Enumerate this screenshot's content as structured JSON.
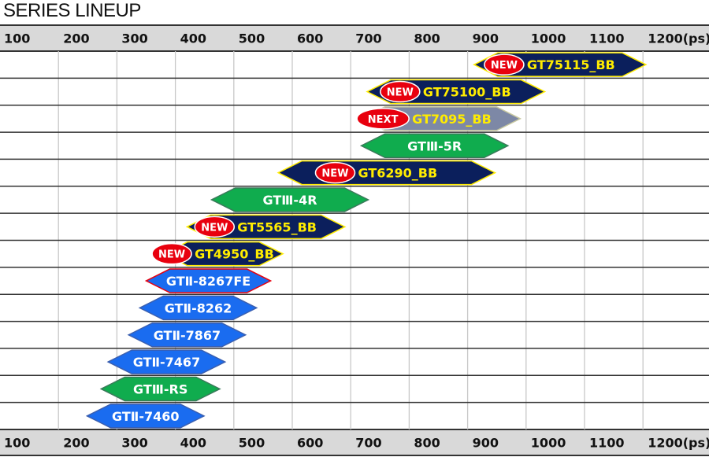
{
  "chart_data": {
    "type": "range-bar",
    "title": "SERIES LINEUP",
    "unit": "(ps)",
    "x_ticks": [
      100,
      200,
      300,
      400,
      500,
      600,
      700,
      800,
      900,
      1000,
      1100,
      1200
    ],
    "x_tick_labels": [
      "100",
      "200",
      "300",
      "400",
      "500",
      "600",
      "700",
      "800",
      "900",
      "1000",
      "1100",
      "1200(ps)"
    ],
    "xlim": [
      100,
      1315
    ],
    "grid": true,
    "series": [
      {
        "label": "GT75115_BB",
        "start": 911,
        "end": 1205,
        "style": "navy",
        "badge": "NEW"
      },
      {
        "label": "GT75100_BB",
        "start": 728,
        "end": 1032,
        "style": "navy",
        "badge": "NEW"
      },
      {
        "label": "GT7095_BB",
        "start": 718,
        "end": 990,
        "style": "gray",
        "badge": "NEXT"
      },
      {
        "label": "GTⅢ-5R",
        "start": 718,
        "end": 969,
        "style": "green",
        "badge": ""
      },
      {
        "label": "GT6290_BB",
        "start": 576,
        "end": 947,
        "style": "navy",
        "badge": "NEW"
      },
      {
        "label": "GTⅢ-4R",
        "start": 462,
        "end": 730,
        "style": "green",
        "badge": ""
      },
      {
        "label": "GT5565_BB",
        "start": 420,
        "end": 690,
        "style": "navy",
        "badge": "NEW"
      },
      {
        "label": "GT4950_BB",
        "start": 380,
        "end": 584,
        "style": "navy",
        "badge": "NEW"
      },
      {
        "label": "GTⅡ-8267FE",
        "start": 350,
        "end": 563,
        "style": "blue-red",
        "badge": ""
      },
      {
        "label": "GTⅡ-8262",
        "start": 339,
        "end": 539,
        "style": "blue",
        "badge": ""
      },
      {
        "label": "GTⅡ-7867",
        "start": 320,
        "end": 520,
        "style": "blue",
        "badge": ""
      },
      {
        "label": "GTⅡ-7467",
        "start": 285,
        "end": 485,
        "style": "blue",
        "badge": ""
      },
      {
        "label": "GTⅢ-RS",
        "start": 273,
        "end": 476,
        "style": "green",
        "badge": ""
      },
      {
        "label": "GTⅡ-7460",
        "start": 249,
        "end": 449,
        "style": "blue",
        "badge": ""
      }
    ],
    "colors": {
      "navy": "#0b1f5c",
      "gray": "#7d88a6",
      "green": "#10ac4e",
      "blue": "#1a6cf0",
      "yellow": "#ffec00",
      "badge": "#e8000e",
      "header": "#d9d9d9"
    }
  }
}
